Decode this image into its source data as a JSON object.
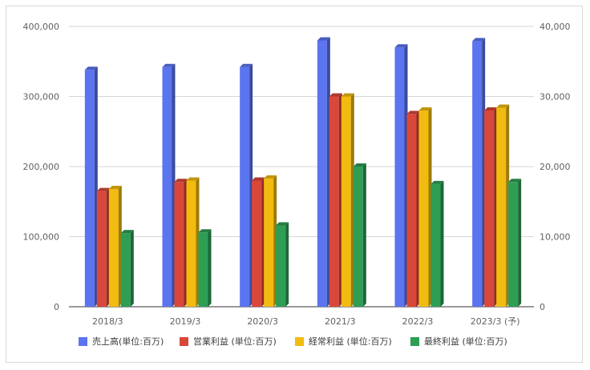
{
  "chart_data": {
    "type": "bar",
    "title": "",
    "categories": [
      "2018/3",
      "2019/3",
      "2020/3",
      "2021/3",
      "2022/3",
      "2023/3 (予)"
    ],
    "series": [
      {
        "name": "売上高(単位:百万)",
        "color": "#5b74f0",
        "axis": "left",
        "values": [
          338000,
          342000,
          342000,
          380000,
          370000,
          379000
        ]
      },
      {
        "name": "営業利益 (単位:百万)",
        "color": "#d9473a",
        "axis": "right",
        "values": [
          16500,
          17800,
          18000,
          30000,
          27500,
          28000
        ]
      },
      {
        "name": "経常利益 (単位:百万)",
        "color": "#f2bb10",
        "axis": "right",
        "values": [
          16800,
          18000,
          18300,
          30000,
          28000,
          28400
        ]
      },
      {
        "name": "最終利益 (単位:百万)",
        "color": "#2e9e55",
        "axis": "right",
        "values": [
          10500,
          10600,
          11600,
          20000,
          17500,
          17800
        ]
      }
    ],
    "left_axis": {
      "min": 0,
      "max": 400000,
      "ticks": [
        "0",
        "100,000",
        "200,000",
        "300,000",
        "400,000"
      ]
    },
    "right_axis": {
      "min": 0,
      "max": 40000,
      "ticks": [
        "0",
        "10,000",
        "20,000",
        "30,000",
        "40,000"
      ]
    },
    "grid": true,
    "legend_position": "bottom"
  }
}
